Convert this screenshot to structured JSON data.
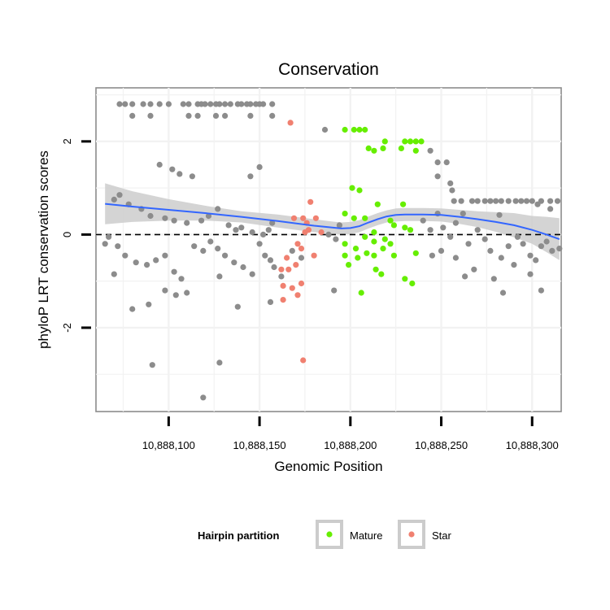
{
  "chart_data": {
    "type": "scatter",
    "title": "Conservation",
    "xlabel": "Genomic Position",
    "ylabel": "phyloP LRT conservation scores",
    "xlim": [
      10888060,
      10888316
    ],
    "ylim": [
      -3.8,
      3.15
    ],
    "x_ticks": [
      10888100,
      10888150,
      10888200,
      10888250,
      10888300
    ],
    "x_tick_labels": [
      "10,888,100",
      "10,888,150",
      "10,888,200",
      "10,888,250",
      "10,888,300"
    ],
    "y_ticks": [
      -2,
      0,
      2
    ],
    "y_tick_labels": [
      "-2",
      "0",
      "2"
    ],
    "reference_line": {
      "y": 0,
      "style": "dashed"
    },
    "legend": {
      "title": "Hairpin partition",
      "position": "bottom",
      "entries": [
        {
          "label": "Mature",
          "color": "#66ee00"
        },
        {
          "label": "Star",
          "color": "#f08070"
        }
      ]
    },
    "colors": {
      "other": "#8c8c8c",
      "Mature": "#66ee00",
      "Star": "#f08070",
      "smooth": "#3366ff",
      "band": "#cccccc"
    },
    "series": [
      {
        "name": "Other",
        "points": [
          [
            10888073,
            2.8
          ],
          [
            10888076,
            2.8
          ],
          [
            10888080,
            2.8
          ],
          [
            10888086,
            2.8
          ],
          [
            10888090,
            2.8
          ],
          [
            10888095,
            2.8
          ],
          [
            10888100,
            2.8
          ],
          [
            10888108,
            2.8
          ],
          [
            10888111,
            2.8
          ],
          [
            10888116,
            2.8
          ],
          [
            10888118,
            2.8
          ],
          [
            10888120,
            2.8
          ],
          [
            10888123,
            2.8
          ],
          [
            10888126,
            2.8
          ],
          [
            10888128,
            2.8
          ],
          [
            10888131,
            2.8
          ],
          [
            10888134,
            2.8
          ],
          [
            10888138,
            2.8
          ],
          [
            10888140,
            2.8
          ],
          [
            10888143,
            2.8
          ],
          [
            10888145,
            2.8
          ],
          [
            10888148,
            2.8
          ],
          [
            10888150,
            2.8
          ],
          [
            10888152,
            2.8
          ],
          [
            10888157,
            2.8
          ],
          [
            10888080,
            2.55
          ],
          [
            10888090,
            2.55
          ],
          [
            10888111,
            2.55
          ],
          [
            10888116,
            2.55
          ],
          [
            10888126,
            2.55
          ],
          [
            10888131,
            2.55
          ],
          [
            10888145,
            2.55
          ],
          [
            10888157,
            2.55
          ],
          [
            10888186,
            2.25
          ],
          [
            10888244,
            1.8
          ],
          [
            10888248,
            1.55
          ],
          [
            10888253,
            1.55
          ],
          [
            10888248,
            1.25
          ],
          [
            10888255,
            1.1
          ],
          [
            10888256,
            0.95
          ],
          [
            10888282,
            0.42
          ],
          [
            10888303,
            0.65
          ],
          [
            10888310,
            0.55
          ],
          [
            10888257,
            0.72
          ],
          [
            10888261,
            0.72
          ],
          [
            10888267,
            0.72
          ],
          [
            10888270,
            0.72
          ],
          [
            10888274,
            0.72
          ],
          [
            10888277,
            0.72
          ],
          [
            10888280,
            0.72
          ],
          [
            10888283,
            0.72
          ],
          [
            10888287,
            0.72
          ],
          [
            10888291,
            0.72
          ],
          [
            10888294,
            0.72
          ],
          [
            10888297,
            0.72
          ],
          [
            10888300,
            0.72
          ],
          [
            10888305,
            0.72
          ],
          [
            10888310,
            0.72
          ],
          [
            10888314,
            0.72
          ],
          [
            10888150,
            1.45
          ],
          [
            10888145,
            1.25
          ],
          [
            10888113,
            1.25
          ],
          [
            10888106,
            1.3
          ],
          [
            10888102,
            1.4
          ],
          [
            10888095,
            1.5
          ],
          [
            10888070,
            0.75
          ],
          [
            10888073,
            0.85
          ],
          [
            10888078,
            0.65
          ],
          [
            10888085,
            0.55
          ],
          [
            10888090,
            0.4
          ],
          [
            10888098,
            0.35
          ],
          [
            10888103,
            0.3
          ],
          [
            10888110,
            0.25
          ],
          [
            10888118,
            0.3
          ],
          [
            10888122,
            0.4
          ],
          [
            10888127,
            0.55
          ],
          [
            10888133,
            0.2
          ],
          [
            10888137,
            0.1
          ],
          [
            10888140,
            0.15
          ],
          [
            10888146,
            0.05
          ],
          [
            10888152,
            0.0
          ],
          [
            10888155,
            0.1
          ],
          [
            10888157,
            0.25
          ],
          [
            10888194,
            0.2
          ],
          [
            10888188,
            0.0
          ],
          [
            10888192,
            -0.1
          ],
          [
            10888065,
            -0.2
          ],
          [
            10888067,
            -0.05
          ],
          [
            10888072,
            -0.25
          ],
          [
            10888076,
            -0.45
          ],
          [
            10888082,
            -0.6
          ],
          [
            10888088,
            -0.65
          ],
          [
            10888093,
            -0.55
          ],
          [
            10888098,
            -0.45
          ],
          [
            10888103,
            -0.8
          ],
          [
            10888107,
            -0.95
          ],
          [
            10888110,
            -1.25
          ],
          [
            10888114,
            -0.25
          ],
          [
            10888119,
            -0.35
          ],
          [
            10888123,
            -0.15
          ],
          [
            10888127,
            -0.3
          ],
          [
            10888131,
            -0.45
          ],
          [
            10888136,
            -0.6
          ],
          [
            10888141,
            -0.7
          ],
          [
            10888146,
            -0.85
          ],
          [
            10888150,
            -0.2
          ],
          [
            10888153,
            -0.45
          ],
          [
            10888156,
            -0.55
          ],
          [
            10888158,
            -0.7
          ],
          [
            10888162,
            -0.9
          ],
          [
            10888168,
            -0.35
          ],
          [
            10888173,
            -0.5
          ],
          [
            10888070,
            -0.85
          ],
          [
            10888080,
            -1.6
          ],
          [
            10888089,
            -1.5
          ],
          [
            10888098,
            -1.2
          ],
          [
            10888104,
            -1.3
          ],
          [
            10888128,
            -0.9
          ],
          [
            10888138,
            -1.55
          ],
          [
            10888156,
            -1.45
          ],
          [
            10888191,
            -1.2
          ],
          [
            10888091,
            -2.8
          ],
          [
            10888128,
            -2.75
          ],
          [
            10888119,
            -3.5
          ],
          [
            10888240,
            0.3
          ],
          [
            10888244,
            0.1
          ],
          [
            10888248,
            0.45
          ],
          [
            10888251,
            0.15
          ],
          [
            10888255,
            -0.05
          ],
          [
            10888258,
            0.25
          ],
          [
            10888262,
            0.45
          ],
          [
            10888265,
            -0.2
          ],
          [
            10888270,
            0.1
          ],
          [
            10888274,
            -0.1
          ],
          [
            10888277,
            -0.35
          ],
          [
            10888283,
            -0.5
          ],
          [
            10888287,
            -0.25
          ],
          [
            10888292,
            -0.05
          ],
          [
            10888295,
            -0.2
          ],
          [
            10888299,
            -0.45
          ],
          [
            10888302,
            -0.55
          ],
          [
            10888305,
            -0.25
          ],
          [
            10888308,
            -0.15
          ],
          [
            10888311,
            -0.35
          ],
          [
            10888315,
            -0.3
          ],
          [
            10888245,
            -0.45
          ],
          [
            10888250,
            -0.35
          ],
          [
            10888258,
            -0.5
          ],
          [
            10888263,
            -0.9
          ],
          [
            10888268,
            -0.75
          ],
          [
            10888279,
            -0.95
          ],
          [
            10888284,
            -1.25
          ],
          [
            10888290,
            -0.65
          ],
          [
            10888299,
            -0.85
          ],
          [
            10888305,
            -1.2
          ]
        ]
      },
      {
        "name": "Mature",
        "points": [
          [
            10888197,
            2.25
          ],
          [
            10888202,
            2.25
          ],
          [
            10888205,
            2.25
          ],
          [
            10888208,
            2.25
          ],
          [
            10888219,
            2.0
          ],
          [
            10888230,
            2.0
          ],
          [
            10888233,
            2.0
          ],
          [
            10888236,
            2.0
          ],
          [
            10888239,
            2.0
          ],
          [
            10888210,
            1.85
          ],
          [
            10888213,
            1.8
          ],
          [
            10888218,
            1.85
          ],
          [
            10888228,
            1.85
          ],
          [
            10888236,
            1.8
          ],
          [
            10888201,
            1.0
          ],
          [
            10888205,
            0.95
          ],
          [
            10888215,
            0.65
          ],
          [
            10888229,
            0.65
          ],
          [
            10888197,
            0.45
          ],
          [
            10888202,
            0.35
          ],
          [
            10888208,
            0.35
          ],
          [
            10888222,
            0.3
          ],
          [
            10888224,
            0.2
          ],
          [
            10888230,
            0.15
          ],
          [
            10888233,
            0.1
          ],
          [
            10888213,
            0.05
          ],
          [
            10888197,
            -0.2
          ],
          [
            10888203,
            -0.3
          ],
          [
            10888208,
            -0.05
          ],
          [
            10888213,
            -0.15
          ],
          [
            10888218,
            -0.3
          ],
          [
            10888222,
            -0.2
          ],
          [
            10888197,
            -0.45
          ],
          [
            10888204,
            -0.5
          ],
          [
            10888209,
            -0.4
          ],
          [
            10888213,
            -0.45
          ],
          [
            10888219,
            -0.1
          ],
          [
            10888224,
            -0.45
          ],
          [
            10888199,
            -0.65
          ],
          [
            10888214,
            -0.75
          ],
          [
            10888217,
            -0.85
          ],
          [
            10888230,
            -0.95
          ],
          [
            10888234,
            -1.05
          ],
          [
            10888206,
            -1.25
          ],
          [
            10888236,
            -0.4
          ]
        ]
      },
      {
        "name": "Star",
        "points": [
          [
            10888167,
            2.4
          ],
          [
            10888178,
            0.7
          ],
          [
            10888169,
            0.35
          ],
          [
            10888174,
            0.35
          ],
          [
            10888176,
            0.25
          ],
          [
            10888181,
            0.35
          ],
          [
            10888184,
            0.05
          ],
          [
            10888171,
            -0.2
          ],
          [
            10888165,
            -0.5
          ],
          [
            10888173,
            -0.3
          ],
          [
            10888180,
            -0.45
          ],
          [
            10888162,
            -0.75
          ],
          [
            10888166,
            -0.75
          ],
          [
            10888170,
            -0.65
          ],
          [
            10888163,
            -1.1
          ],
          [
            10888168,
            -1.15
          ],
          [
            10888171,
            -1.3
          ],
          [
            10888173,
            -1.05
          ],
          [
            10888163,
            -1.4
          ],
          [
            10888174,
            -2.7
          ],
          [
            10888175,
            0.05
          ],
          [
            10888177,
            0.1
          ]
        ]
      }
    ],
    "smooth_line": {
      "x": [
        10888065,
        10888080,
        10888100,
        10888120,
        10888140,
        10888160,
        10888180,
        10888190,
        10888195,
        10888200,
        10888205,
        10888210,
        10888215,
        10888220,
        10888225,
        10888230,
        10888240,
        10888250,
        10888260,
        10888270,
        10888280,
        10888290,
        10888300,
        10888308,
        10888315
      ],
      "y": [
        0.66,
        0.6,
        0.53,
        0.46,
        0.38,
        0.29,
        0.19,
        0.15,
        0.13,
        0.14,
        0.18,
        0.26,
        0.33,
        0.39,
        0.42,
        0.43,
        0.43,
        0.42,
        0.38,
        0.33,
        0.27,
        0.2,
        0.1,
        0.0,
        -0.1
      ],
      "lower": [
        0.22,
        0.27,
        0.3,
        0.3,
        0.26,
        0.15,
        0.05,
        0.02,
        0.0,
        0.01,
        0.05,
        0.13,
        0.2,
        0.26,
        0.28,
        0.29,
        0.29,
        0.28,
        0.23,
        0.16,
        0.06,
        -0.06,
        -0.2,
        -0.38,
        -0.55
      ],
      "upper": [
        1.1,
        0.93,
        0.76,
        0.62,
        0.5,
        0.43,
        0.33,
        0.28,
        0.26,
        0.27,
        0.31,
        0.39,
        0.46,
        0.52,
        0.56,
        0.57,
        0.57,
        0.56,
        0.53,
        0.5,
        0.48,
        0.46,
        0.4,
        0.38,
        0.35
      ]
    }
  }
}
